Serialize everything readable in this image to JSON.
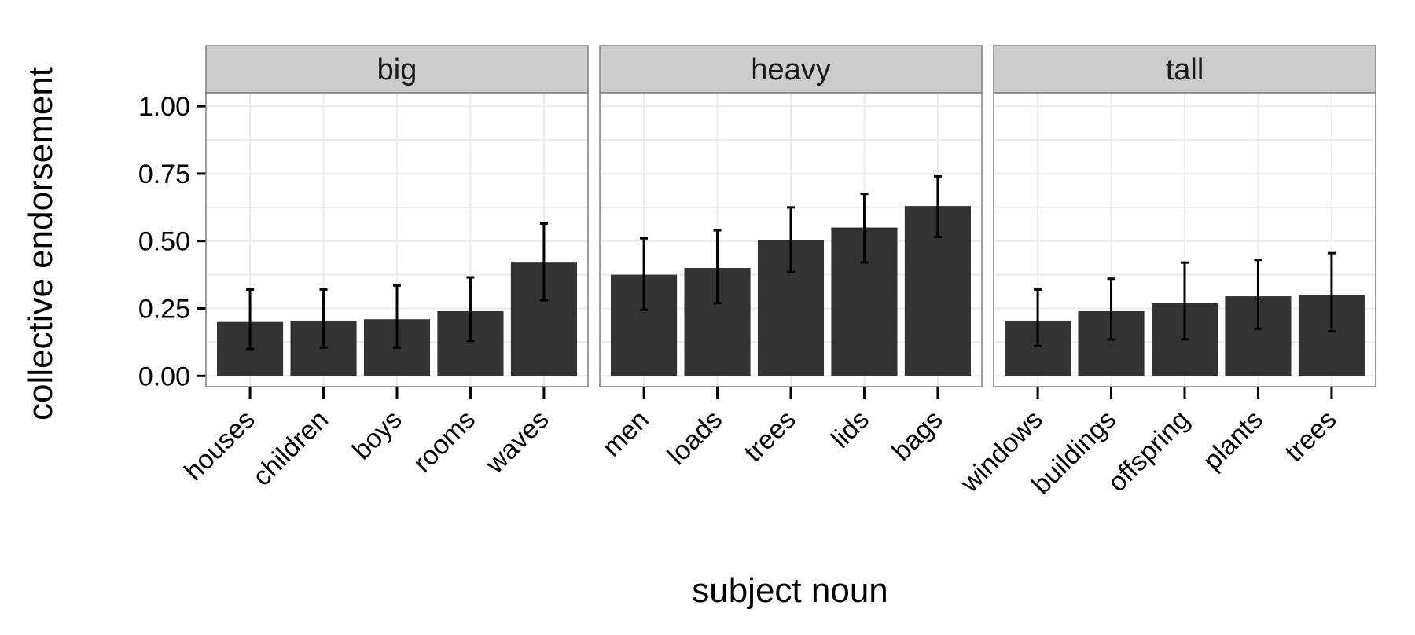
{
  "chart_data": {
    "type": "bar",
    "xlabel": "subject noun",
    "ylabel": "collective endorsement",
    "ylim": [
      -0.04,
      1.05
    ],
    "yticks": [
      "0.00",
      "0.25",
      "0.50",
      "0.75",
      "1.00"
    ],
    "ytick_values": [
      0,
      0.25,
      0.5,
      0.75,
      1.0
    ],
    "error_bars": true,
    "colors": {
      "bar": "#333333",
      "panel_bg": "#ffffff",
      "panel_border": "#7f7f7f",
      "grid": "#ebebeb",
      "strip_bg": "#cccccc",
      "error_bar": "#000000"
    },
    "panels": [
      {
        "title": "big",
        "categories": [
          "houses",
          "children",
          "boys",
          "rooms",
          "waves"
        ],
        "values": [
          0.2,
          0.205,
          0.21,
          0.24,
          0.42
        ],
        "err_low": [
          0.1,
          0.105,
          0.105,
          0.13,
          0.28
        ],
        "err_high": [
          0.32,
          0.32,
          0.335,
          0.365,
          0.565
        ]
      },
      {
        "title": "heavy",
        "categories": [
          "men",
          "loads",
          "trees",
          "lids",
          "bags"
        ],
        "values": [
          0.375,
          0.4,
          0.505,
          0.55,
          0.63
        ],
        "err_low": [
          0.245,
          0.27,
          0.385,
          0.42,
          0.515
        ],
        "err_high": [
          0.51,
          0.54,
          0.625,
          0.675,
          0.74
        ]
      },
      {
        "title": "tall",
        "categories": [
          "windows",
          "buildings",
          "offspring",
          "plants",
          "trees"
        ],
        "values": [
          0.205,
          0.24,
          0.27,
          0.295,
          0.3
        ],
        "err_low": [
          0.11,
          0.135,
          0.135,
          0.175,
          0.165
        ],
        "err_high": [
          0.32,
          0.36,
          0.42,
          0.43,
          0.455
        ]
      }
    ]
  }
}
